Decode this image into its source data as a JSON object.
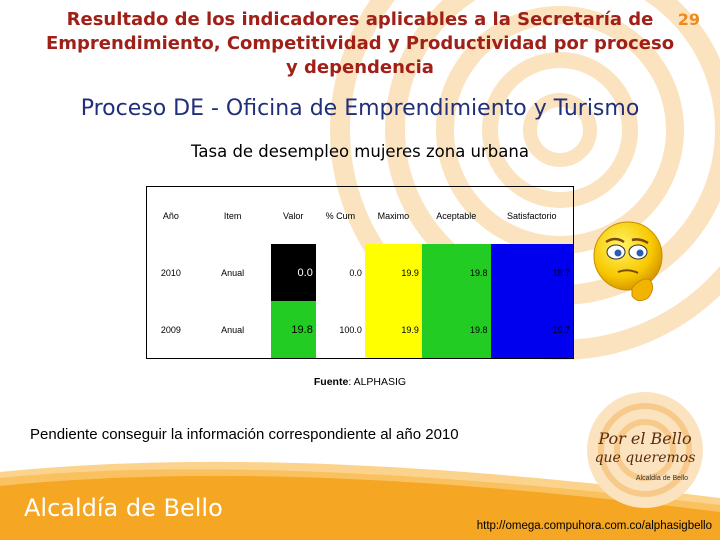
{
  "header": {
    "title": "Resultado de los indicadores aplicables a la Secretaría de Emprendimiento, Competitividad y Productividad  por proceso y dependencia",
    "subtitle": "Proceso DE - Oficina de Emprendimiento y Turismo",
    "page_number": "29"
  },
  "indicator": {
    "title": "Tasa de desempleo mujeres zona urbana",
    "columns": [
      "Año",
      "Item",
      "Valor",
      "% Cum",
      "Maximo",
      "Aceptable",
      "Satisfactorio"
    ],
    "rows": [
      {
        "anio": "2010",
        "item": "Anual",
        "valor": "0.0",
        "cum": "0.0",
        "maximo": "19.9",
        "aceptable": "19.8",
        "satisfactorio": "19.7",
        "valor_color": "#000000"
      },
      {
        "anio": "2009",
        "item": "Anual",
        "valor": "19.8",
        "cum": "100.0",
        "maximo": "19.9",
        "aceptable": "19.8",
        "satisfactorio": "19.7",
        "valor_color": "#22cc22"
      }
    ],
    "colors": {
      "maximo": "#ffff00",
      "aceptable": "#22cc22",
      "satisfactorio": "#0000ee"
    }
  },
  "source": {
    "label": "Fuente",
    "value": ": ALPHASIG"
  },
  "note": "Pendiente conseguir la información correspondiente al año 2010",
  "footer": {
    "brand": "Alcaldía de Bello",
    "url": "http://omega.compuhora.com.co/alphasigbello",
    "logo_line1": "Por el Bello",
    "logo_line2": "que queremos",
    "logo_line3": "Alcaldía de Bello"
  },
  "icons": {
    "status": "thinking-face-icon"
  }
}
